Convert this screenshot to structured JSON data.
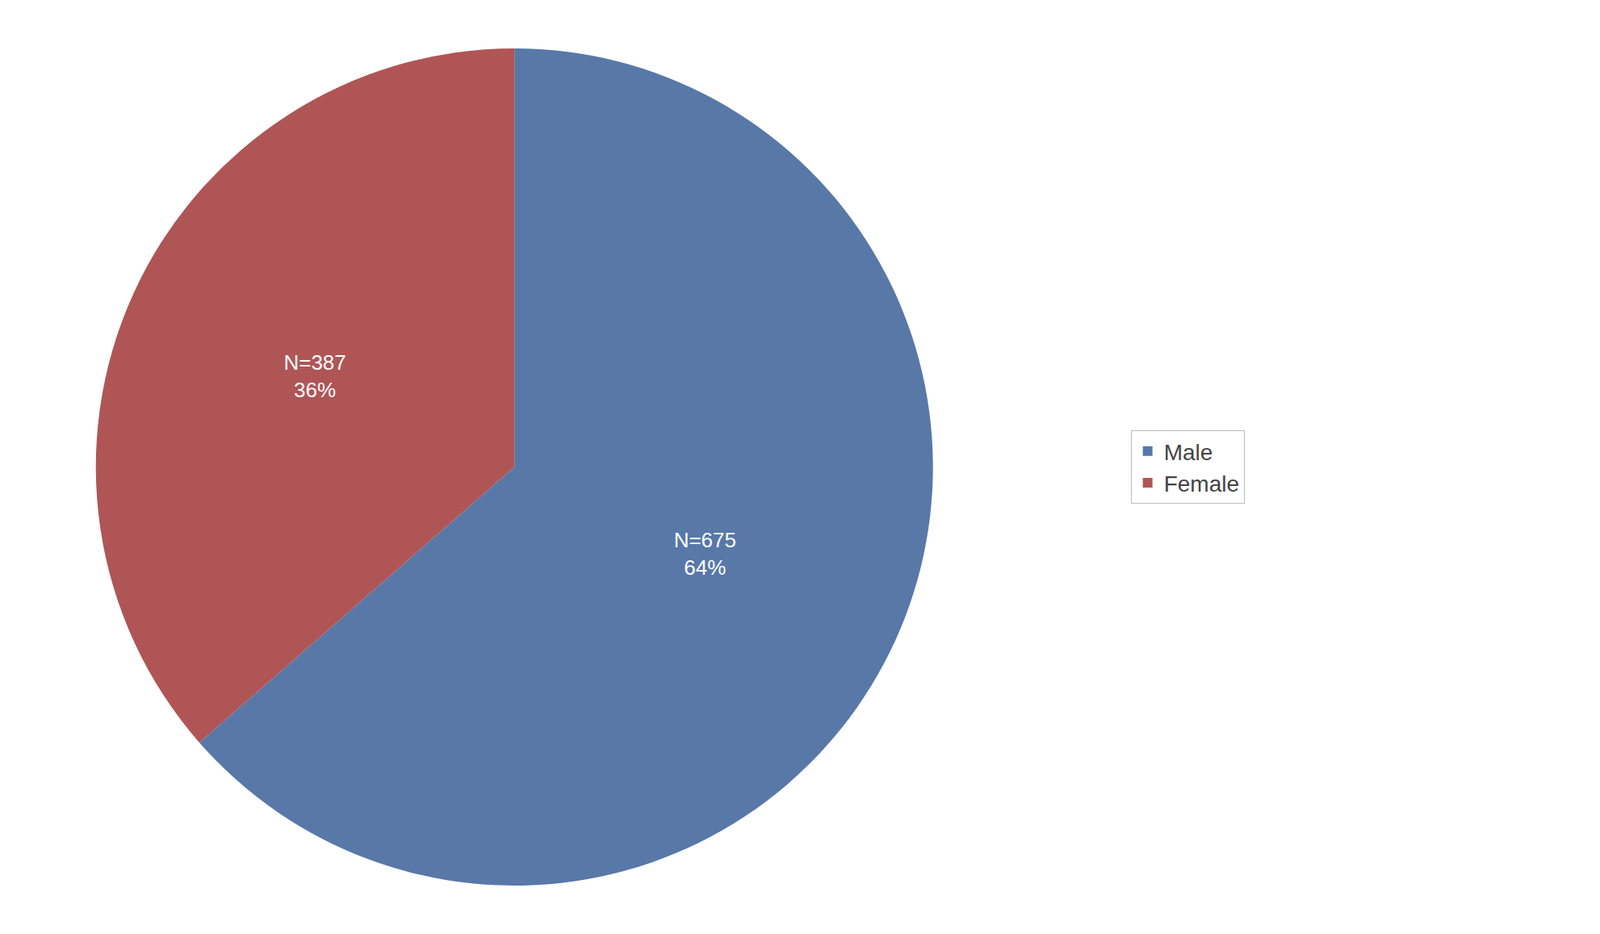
{
  "chart_data": {
    "type": "pie",
    "categories": [
      "Male",
      "Female"
    ],
    "values": [
      675,
      387
    ],
    "value_labels": [
      "N=675\n64%",
      "N=387\n36%"
    ],
    "colors": [
      "#5878a8",
      "#b05555"
    ],
    "data_labels": true,
    "legend": "right"
  }
}
